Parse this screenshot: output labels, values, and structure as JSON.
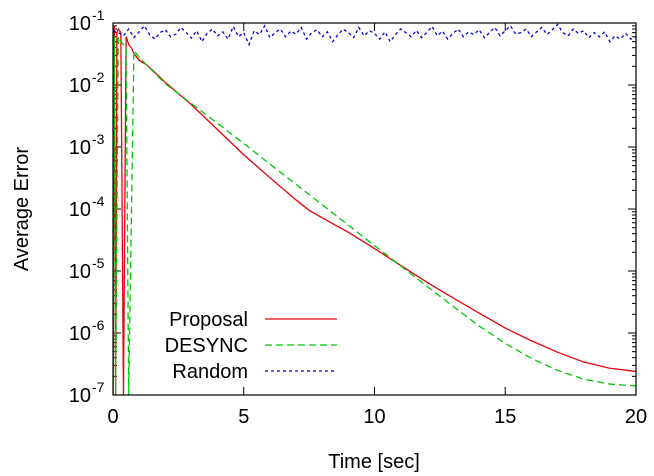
{
  "chart_data": {
    "type": "line",
    "title": "",
    "xlabel": "Time [sec]",
    "ylabel": "Average Error",
    "xlim": [
      0,
      20
    ],
    "ylim": [
      1e-07,
      0.1
    ],
    "yscale": "log",
    "grid": false,
    "legend_position": "bottom-left",
    "x_ticks": [
      0,
      5,
      10,
      15,
      20
    ],
    "x_tick_labels": [
      "0",
      "5",
      "10",
      "15",
      "20"
    ],
    "y_ticks": [
      {
        "value": 0.1,
        "base": "10",
        "exp": "-1"
      },
      {
        "value": 0.01,
        "base": "10",
        "exp": "-2"
      },
      {
        "value": 0.001,
        "base": "10",
        "exp": "-3"
      },
      {
        "value": 0.0001,
        "base": "10",
        "exp": "-4"
      },
      {
        "value": 1e-05,
        "base": "10",
        "exp": "-5"
      },
      {
        "value": 1e-06,
        "base": "10",
        "exp": "-6"
      },
      {
        "value": 1e-07,
        "base": "10",
        "exp": "-7"
      }
    ],
    "series": [
      {
        "name": "Proposal",
        "color": "#e8000b",
        "dash": "solid",
        "x": [
          0,
          0.05,
          0.1,
          0.15,
          0.2,
          0.3,
          0.4,
          0.5,
          0.6,
          0.7,
          0.8,
          1.0,
          1.3,
          1.6,
          2,
          3,
          4,
          5,
          6,
          7,
          7.5,
          8,
          9,
          10,
          11,
          12,
          13,
          14,
          15,
          16,
          17,
          18,
          19,
          20
        ],
        "y": [
          1e-07,
          0.09,
          1e-07,
          0.07,
          0.08,
          0.07,
          1e-07,
          0.06,
          0.045,
          0.04,
          0.032,
          0.025,
          0.021,
          0.016,
          0.011,
          0.0048,
          0.0019,
          0.00075,
          0.00032,
          0.00014,
          9.52e-05,
          7.2e-05,
          4.2e-05,
          2.3e-05,
          1.23e-05,
          6.6e-06,
          3.7e-06,
          2.1e-06,
          1.2e-06,
          7.5e-07,
          4.9e-07,
          3.4e-07,
          2.7e-07,
          2.4e-07
        ]
      },
      {
        "name": "DESYNC",
        "color": "#00c800",
        "dash": "dashed",
        "x": [
          0,
          0.05,
          0.1,
          0.2,
          0.3,
          0.5,
          0.6,
          0.8,
          1.0,
          1.5,
          2,
          3,
          4,
          5,
          6,
          7,
          8,
          9,
          10,
          11,
          12,
          13,
          14,
          15,
          16,
          17,
          18,
          19,
          20
        ],
        "y": [
          1e-07,
          0.06,
          1e-07,
          0.06,
          0.05,
          0.04,
          1e-07,
          0.036,
          0.028,
          0.017,
          0.0105,
          0.005,
          0.0024,
          0.00114,
          0.00053,
          0.00025,
          0.000117,
          5.49e-05,
          2.57e-05,
          1.21e-05,
          5.7e-06,
          2.7e-06,
          1.3e-06,
          6.8e-07,
          3.9e-07,
          2.5e-07,
          1.8e-07,
          1.5e-07,
          1.4e-07
        ]
      },
      {
        "name": "Random",
        "color": "#0000e0",
        "dash": "dotted",
        "x": [
          0,
          0.2,
          0.4,
          0.6,
          0.8,
          1.0,
          1.2,
          1.4,
          1.6,
          1.8,
          2.0,
          2.2,
          2.4,
          2.6,
          2.8,
          3.0,
          3.2,
          3.4,
          3.6,
          3.8,
          4.0,
          4.2,
          4.4,
          4.6,
          4.8,
          5.0,
          5.2,
          5.4,
          5.6,
          5.8,
          6.0,
          6.2,
          6.4,
          6.6,
          6.8,
          7.0,
          7.2,
          7.4,
          7.6,
          7.8,
          8.0,
          8.2,
          8.4,
          8.6,
          8.8,
          9.0,
          9.2,
          9.4,
          9.6,
          9.8,
          10.0,
          10.2,
          10.4,
          10.6,
          10.8,
          11.0,
          11.2,
          11.4,
          11.6,
          11.8,
          12.0,
          12.2,
          12.4,
          12.6,
          12.8,
          13.0,
          13.2,
          13.4,
          13.6,
          13.8,
          14.0,
          14.2,
          14.4,
          14.6,
          14.8,
          15.0,
          15.2,
          15.4,
          15.6,
          15.8,
          16.0,
          16.2,
          16.4,
          16.6,
          16.8,
          17.0,
          17.2,
          17.4,
          17.6,
          17.8,
          18.0,
          18.2,
          18.4,
          18.6,
          18.8,
          19.0,
          19.2,
          19.4,
          19.6,
          19.8,
          20.0
        ],
        "y": [
          0.075,
          0.07,
          0.062,
          0.08,
          0.058,
          0.072,
          0.09,
          0.065,
          0.055,
          0.07,
          0.078,
          0.06,
          0.066,
          0.085,
          0.07,
          0.057,
          0.075,
          0.05,
          0.068,
          0.08,
          0.062,
          0.072,
          0.055,
          0.088,
          0.06,
          0.07,
          0.045,
          0.075,
          0.065,
          0.09,
          0.058,
          0.07,
          0.08,
          0.06,
          0.074,
          0.066,
          0.085,
          0.055,
          0.07,
          0.078,
          0.06,
          0.072,
          0.05,
          0.065,
          0.08,
          0.07,
          0.058,
          0.085,
          0.062,
          0.075,
          0.068,
          0.055,
          0.072,
          0.05,
          0.065,
          0.08,
          0.07,
          0.06,
          0.076,
          0.058,
          0.07,
          0.088,
          0.062,
          0.074,
          0.055,
          0.068,
          0.08,
          0.06,
          0.072,
          0.065,
          0.078,
          0.058,
          0.07,
          0.085,
          0.062,
          0.075,
          0.09,
          0.066,
          0.07,
          0.08,
          0.06,
          0.072,
          0.085,
          0.065,
          0.078,
          0.095,
          0.07,
          0.062,
          0.08,
          0.068,
          0.075,
          0.058,
          0.07,
          0.06,
          0.072,
          0.05,
          0.062,
          0.055,
          0.068,
          0.055,
          0.06
        ]
      }
    ]
  }
}
